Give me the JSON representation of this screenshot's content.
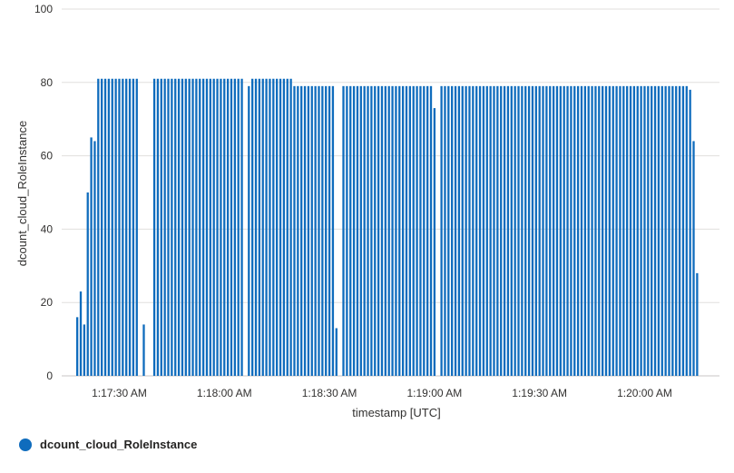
{
  "chart_data": {
    "type": "bar",
    "title": "",
    "xlabel": "timestamp [UTC]",
    "ylabel": "dcount_cloud_RoleInstance",
    "ylim": [
      0,
      100
    ],
    "yticks": [
      0,
      20,
      40,
      60,
      80,
      100
    ],
    "grid": true,
    "legend_position": "bottom-left",
    "x_start": "1:17:18 AM",
    "x_end": "1:20:13 AM",
    "x_step_seconds": 1,
    "xticks": [
      "1:17:30 AM",
      "1:18:00 AM",
      "1:18:30 AM",
      "1:19:00 AM",
      "1:19:30 AM",
      "1:20:00 AM"
    ],
    "series": [
      {
        "name": "dcount_cloud_RoleInstance",
        "color": "#0f6cbd",
        "values": [
          16,
          23,
          14,
          50,
          65,
          64,
          81,
          81,
          81,
          81,
          81,
          81,
          81,
          81,
          81,
          81,
          81,
          81,
          0,
          14,
          0,
          0,
          81,
          81,
          81,
          81,
          81,
          81,
          81,
          81,
          81,
          81,
          81,
          81,
          81,
          81,
          81,
          81,
          81,
          81,
          81,
          81,
          81,
          81,
          81,
          81,
          81,
          81,
          0,
          79,
          81,
          81,
          81,
          81,
          81,
          81,
          81,
          81,
          81,
          81,
          81,
          81,
          79,
          79,
          79,
          79,
          79,
          79,
          79,
          79,
          79,
          79,
          79,
          79,
          13,
          0,
          79,
          79,
          79,
          79,
          79,
          79,
          79,
          79,
          79,
          79,
          79,
          79,
          79,
          79,
          79,
          79,
          79,
          79,
          79,
          79,
          79,
          79,
          79,
          79,
          79,
          79,
          73,
          0,
          79,
          79,
          79,
          79,
          79,
          79,
          79,
          79,
          79,
          79,
          79,
          79,
          79,
          79,
          79,
          79,
          79,
          79,
          79,
          79,
          79,
          79,
          79,
          79,
          79,
          79,
          79,
          79,
          79,
          79,
          79,
          79,
          79,
          79,
          79,
          79,
          79,
          79,
          79,
          79,
          79,
          79,
          79,
          79,
          79,
          79,
          79,
          79,
          79,
          79,
          79,
          79,
          79,
          79,
          79,
          79,
          79,
          79,
          79,
          79,
          79,
          79,
          79,
          79,
          79,
          79,
          79,
          79,
          79,
          79,
          79,
          78,
          64,
          28
        ]
      }
    ]
  }
}
